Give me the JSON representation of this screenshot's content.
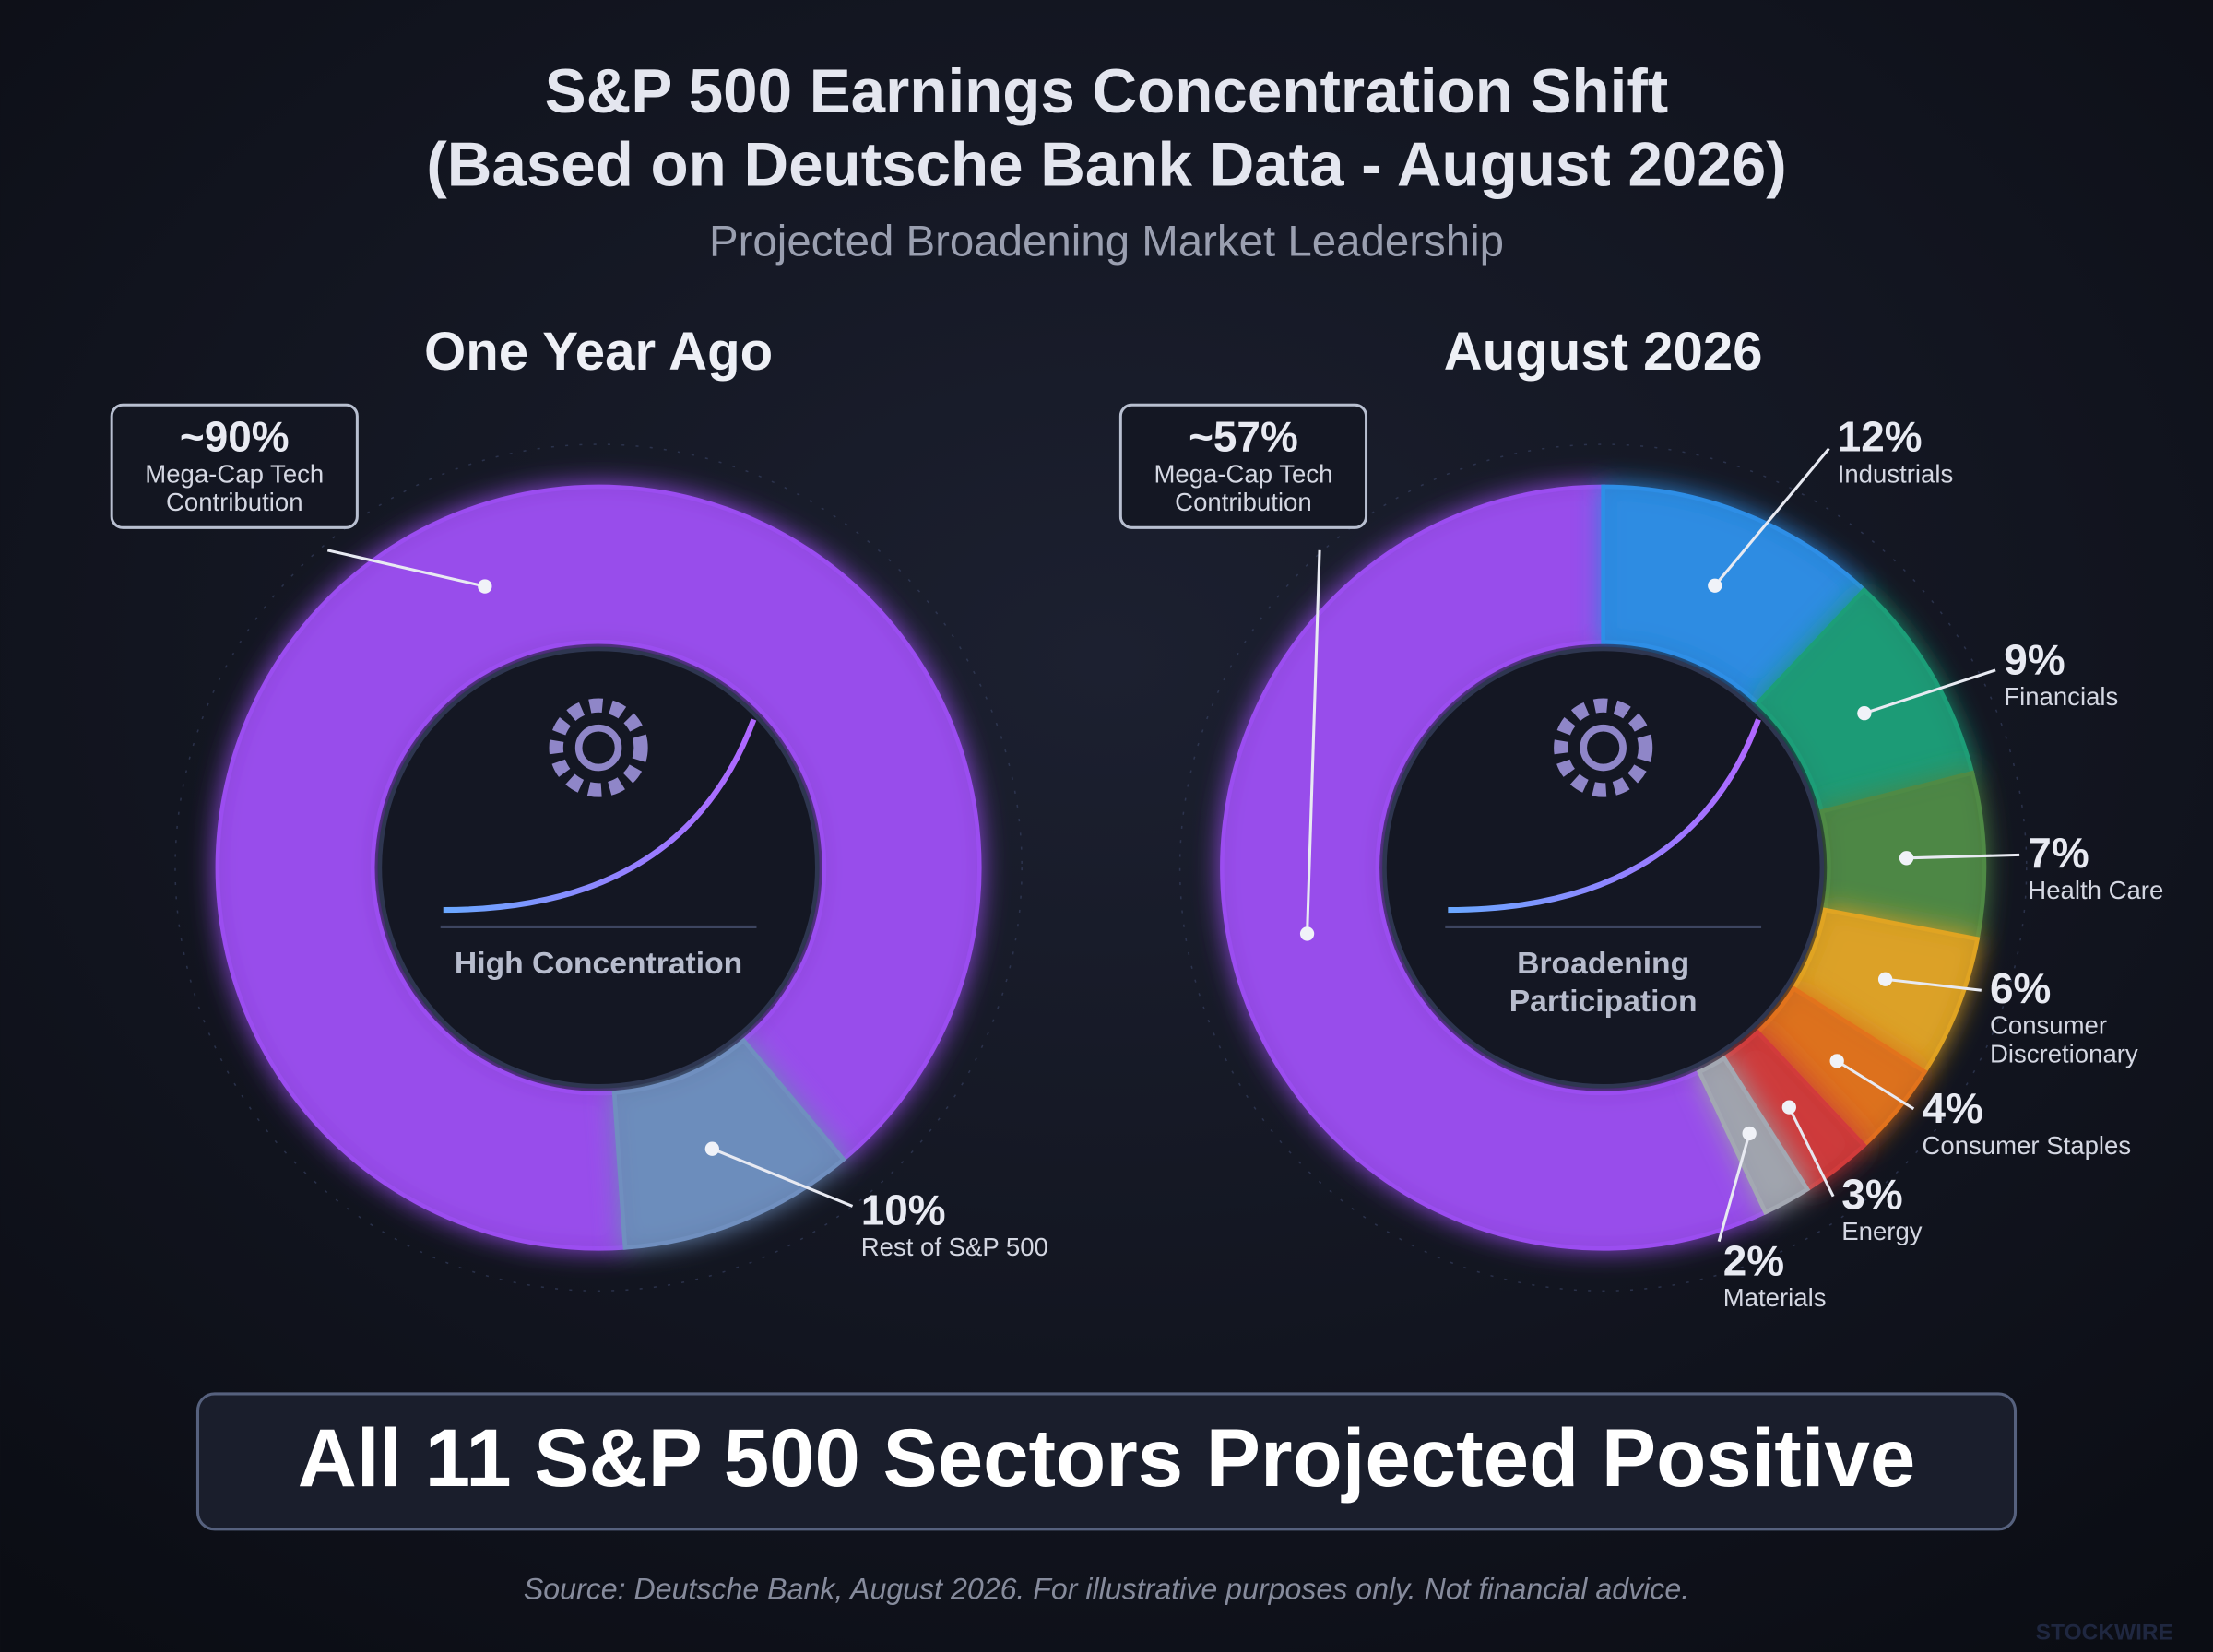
{
  "header": {
    "title": "S&P 500 Earnings Concentration Shift",
    "title_note": "(Based on Deutsche Bank Data - August 2026)",
    "subtitle": "Projected Broadening Market Leadership"
  },
  "chart_data": [
    {
      "type": "donut",
      "title": "One Year Ago",
      "center_label": "High Concentration",
      "categories": [
        "Mega-Cap Tech Contribution",
        "Rest of S&P 500"
      ],
      "values": [
        90,
        10
      ],
      "value_labels": [
        "~90%",
        "10%"
      ],
      "colors": [
        "#9b4df0",
        "#6f8fbf"
      ]
    },
    {
      "type": "donut",
      "title": "August 2026",
      "center_label": "Broadening Participation",
      "categories": [
        "Mega-Cap Tech Contribution",
        "Industrials",
        "Financials",
        "Health Care",
        "Consumer Discretionary",
        "Consumer Staples",
        "Energy",
        "Materials"
      ],
      "values": [
        57,
        12,
        9,
        7,
        6,
        4,
        3,
        2
      ],
      "value_labels": [
        "~57%",
        "12%",
        "9%",
        "7%",
        "6%",
        "4%",
        "3%",
        "2%"
      ],
      "colors": [
        "#9b4df0",
        "#2d8ee6",
        "#1f9e78",
        "#4f8a45",
        "#e0a424",
        "#e2731f",
        "#d23b3b",
        "#a3a8b2"
      ]
    }
  ],
  "footer": {
    "banner": "All 11 S&P 500 Sectors Projected Positive",
    "source": "Source: Deutsche Bank, August 2026. For illustrative purposes only. Not financial advice.",
    "watermark": "STOCKWIRE"
  }
}
